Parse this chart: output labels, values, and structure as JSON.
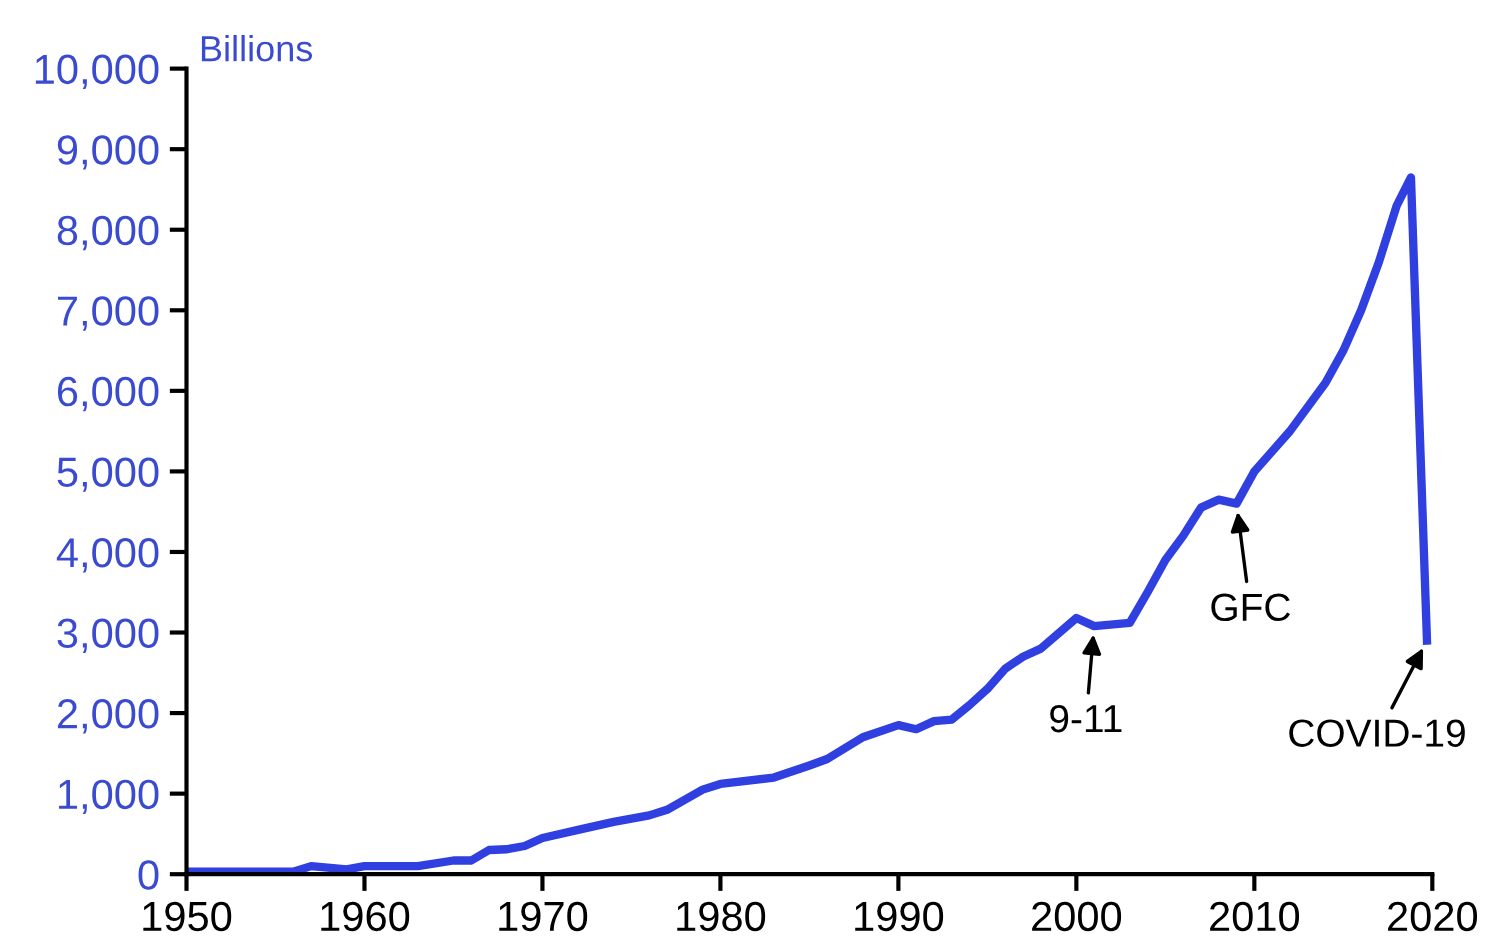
{
  "chart_data": {
    "type": "line",
    "ylabel": "Billions",
    "x": [
      1950,
      1956,
      1957,
      1959,
      1960,
      1963,
      1965,
      1966,
      1967,
      1968,
      1969,
      1970,
      1972,
      1974,
      1976,
      1977,
      1979,
      1980,
      1983,
      1985,
      1986,
      1988,
      1990,
      1991,
      1992,
      1993,
      1994,
      1995,
      1996,
      1997,
      1998,
      2000,
      2001,
      2003,
      2004,
      2005,
      2006,
      2007,
      2008,
      2009,
      2010,
      2012,
      2014,
      2015,
      2016,
      2017,
      2018,
      2018.8,
      2019.7
    ],
    "series": [
      {
        "color": "#2f3fe0",
        "values": [
          30,
          30,
          100,
          60,
          100,
          100,
          170,
          170,
          300,
          310,
          350,
          450,
          550,
          650,
          730,
          800,
          1050,
          1120,
          1200,
          1350,
          1430,
          1700,
          1850,
          1800,
          1900,
          1920,
          2100,
          2300,
          2550,
          2700,
          2800,
          3180,
          3080,
          3120,
          3500,
          3900,
          4200,
          4550,
          4650,
          4600,
          5000,
          5500,
          6100,
          6500,
          7000,
          7600,
          8300,
          8650,
          2900
        ]
      }
    ],
    "xlim": [
      1950,
      2020
    ],
    "xticks": [
      1950,
      1960,
      1970,
      1980,
      1990,
      2000,
      2010,
      2020
    ],
    "ylim": [
      0,
      10000
    ],
    "yticks": [
      {
        "value": 0,
        "label": "0"
      },
      {
        "value": 1000,
        "label": "1,000"
      },
      {
        "value": 2000,
        "label": "2,000"
      },
      {
        "value": 3000,
        "label": "3,000"
      },
      {
        "value": 4000,
        "label": "4,000"
      },
      {
        "value": 5000,
        "label": "5,000"
      },
      {
        "value": 6000,
        "label": "6,000"
      },
      {
        "value": 7000,
        "label": "7,000"
      },
      {
        "value": 8000,
        "label": "8,000"
      },
      {
        "value": 9000,
        "label": "9,000"
      },
      {
        "value": 10000,
        "label": "10,000"
      }
    ],
    "annotations": [
      {
        "text": "9-11",
        "x": 2001,
        "y": 3080
      },
      {
        "text": "GFC",
        "x": 2009,
        "y": 4600
      },
      {
        "text": "COVID-19",
        "x": 2019.7,
        "y": 2900
      }
    ],
    "grid": false,
    "marker": "none",
    "line_style": "solid"
  }
}
